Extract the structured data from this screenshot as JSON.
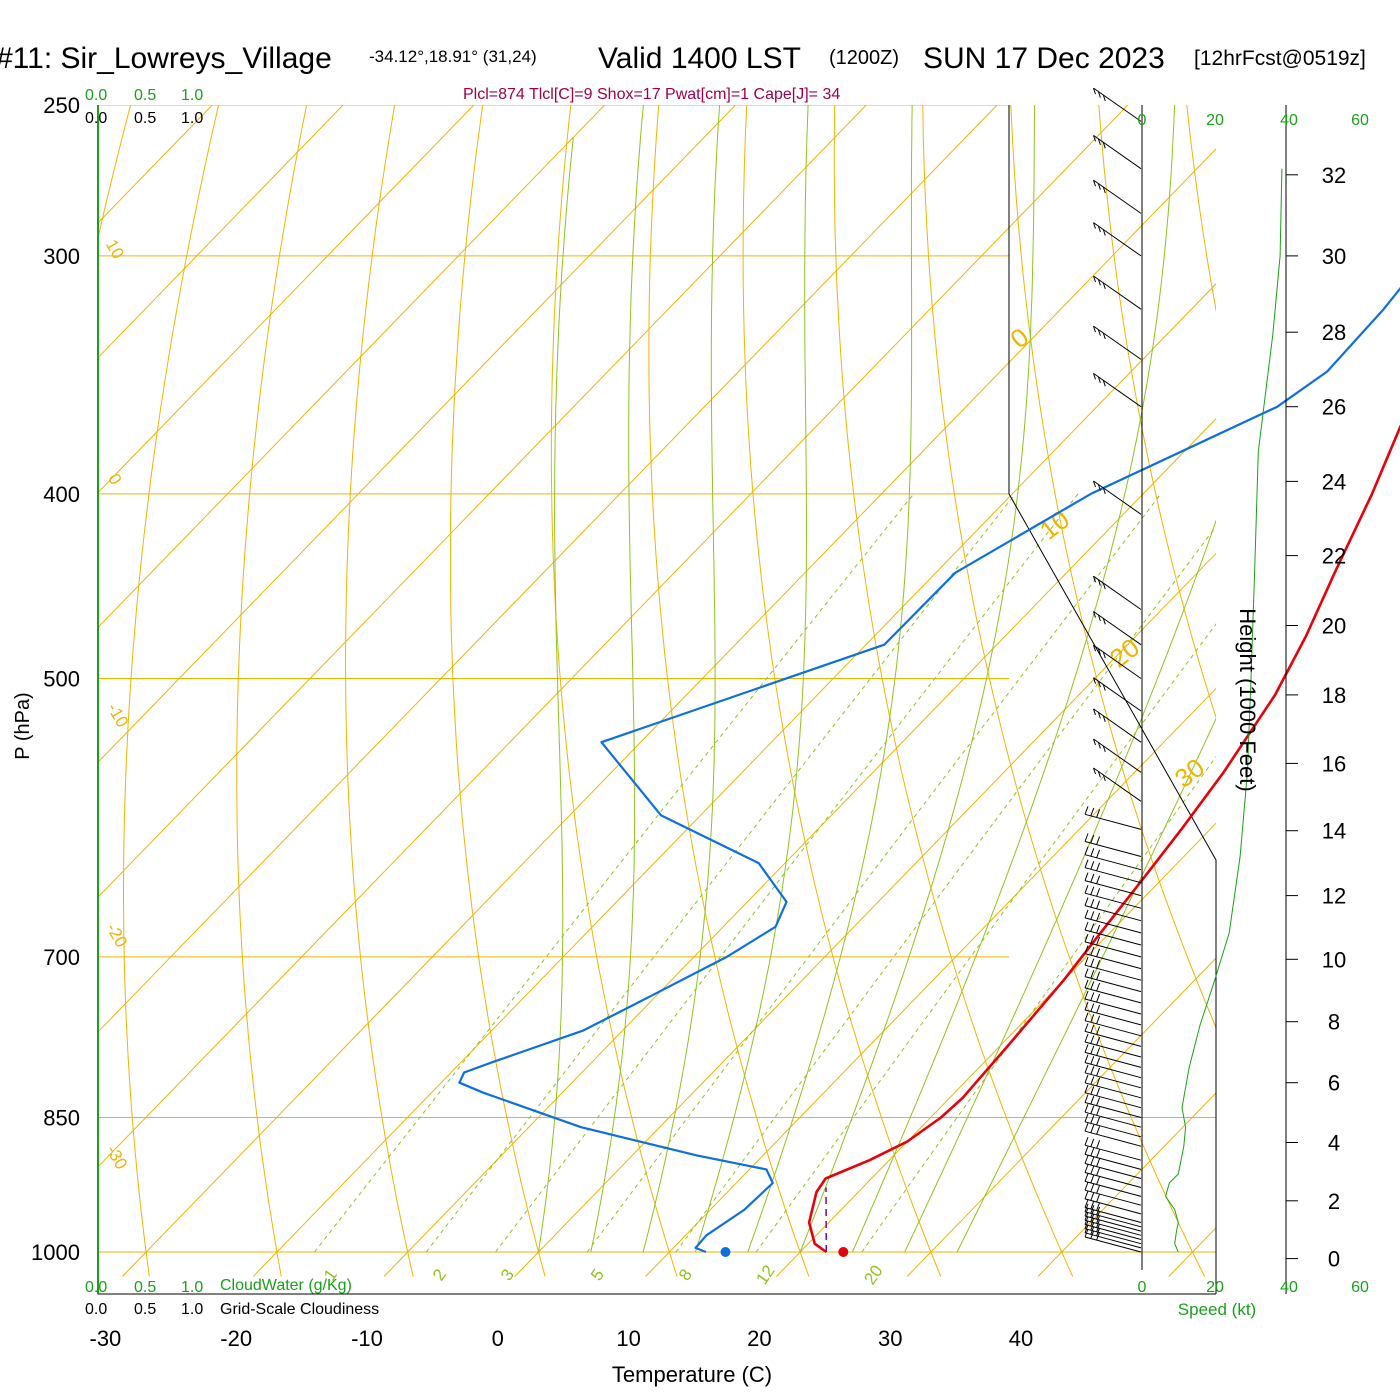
{
  "header": {
    "station": "#11: Sir_Lowreys_Village",
    "coords": "-34.12°,18.91° (31,24)",
    "valid": "Valid 1400 LST",
    "zulu": "(1200Z)",
    "date": "SUN 17 Dec 2023",
    "forecast": "[12hrFcst@0519z]",
    "indices": "Plcl=874 Tlcl[C]=9 Shox=17 Pwat[cm]=1 Cape[J]= 34"
  },
  "colors": {
    "isotherm": "#f0b400",
    "dry_adiabat": "#f0b400",
    "moist_adiabat": "#8fc31f",
    "mixing_ratio": "#8fc31f",
    "temperature": "#e8000b",
    "dewpoint": "#0d6fe0",
    "parcel": "#7a0a8a",
    "green_text": "#1aa01a",
    "index_text": "#a0004a"
  },
  "scales": {
    "cloudwater_ticks_top": [
      "0.0",
      "0.5",
      "1.0"
    ],
    "cloudiness_ticks_top": [
      "0.0",
      "0.5",
      "1.0"
    ],
    "cloudwater_ticks_bottom": [
      "0.0",
      "0.5",
      "1.0"
    ],
    "cloudwater_label": "CloudWater (g/Kg)",
    "cloudiness_ticks_bottom": [
      "0.0",
      "0.5",
      "1.0"
    ],
    "cloudiness_label": "Grid-Scale Cloudiness",
    "speed_ticks": [
      "0",
      "20",
      "40",
      "60"
    ],
    "speed_label": "Speed (kt)"
  },
  "chart_data": {
    "type": "line",
    "title": "",
    "xlabel": "Temperature (C)",
    "ylabel": "P (hPa)",
    "y2label": "Height (1000 Feet)",
    "pressure_log_scale": true,
    "pressure_range": [
      1020,
      250
    ],
    "pressure_ticks": [
      250,
      300,
      400,
      500,
      700,
      850,
      1000
    ],
    "isobars": [
      250,
      300,
      400,
      500,
      700,
      850,
      1000
    ],
    "temperature_ticks": [
      -30,
      -20,
      -10,
      0,
      10,
      20,
      30,
      40
    ],
    "height_ticks_kft": [
      0,
      2,
      4,
      6,
      8,
      10,
      12,
      14,
      16,
      18,
      20,
      22,
      24,
      26,
      28,
      30,
      32
    ],
    "height_pressure": [
      [
        0,
        1008
      ],
      [
        2,
        940
      ],
      [
        4,
        876
      ],
      [
        6,
        815
      ],
      [
        8,
        757
      ],
      [
        10,
        702
      ],
      [
        12,
        650
      ],
      [
        14,
        601
      ],
      [
        16,
        554
      ],
      [
        18,
        510
      ],
      [
        20,
        469
      ],
      [
        22,
        431
      ],
      [
        24,
        394
      ],
      [
        26,
        360
      ],
      [
        28,
        329
      ],
      [
        30,
        300
      ],
      [
        32,
        272
      ]
    ],
    "isotherm_labels": [
      "0",
      "10",
      "20",
      "30"
    ],
    "dry_adiabat_labels": [
      "10",
      "0",
      "-10",
      "-20",
      "-30"
    ],
    "moist_adiabat_labels": [
      "12",
      "20"
    ],
    "mixing_ratio_labels": [
      "1",
      "2",
      "3",
      "5",
      "8",
      "12",
      "20"
    ],
    "mixing_ratio_lines": [
      1,
      2,
      3,
      5,
      8,
      12,
      20
    ],
    "series": [
      {
        "key": "temperature",
        "points": [
          [
            22,
            1000
          ],
          [
            20.5,
            990
          ],
          [
            18.5,
            965
          ],
          [
            16.8,
            930
          ],
          [
            16.5,
            915
          ],
          [
            18.5,
            895
          ],
          [
            20,
            875
          ],
          [
            20.8,
            850
          ],
          [
            21,
            830
          ],
          [
            20.6,
            780
          ],
          [
            20,
            720
          ],
          [
            19.3,
            680
          ],
          [
            18.6,
            640
          ],
          [
            17.8,
            600
          ],
          [
            16.8,
            560
          ],
          [
            15,
            510
          ],
          [
            13,
            475
          ],
          [
            10.5,
            440
          ],
          [
            7.5,
            400
          ],
          [
            4.8,
            370
          ],
          [
            2,
            340
          ],
          [
            -1,
            310
          ],
          [
            -4,
            280
          ],
          [
            -7,
            260
          ]
        ]
      },
      {
        "key": "dewpoint",
        "points": [
          [
            12.8,
            1000
          ],
          [
            11.7,
            995
          ],
          [
            11.6,
            980
          ],
          [
            12.6,
            950
          ],
          [
            12.8,
            920
          ],
          [
            11.3,
            905
          ],
          [
            5,
            890
          ],
          [
            -6,
            860
          ],
          [
            -16,
            825
          ],
          [
            -18.6,
            815
          ],
          [
            -19,
            805
          ],
          [
            -17.6,
            795
          ],
          [
            -13,
            765
          ],
          [
            -10.5,
            735
          ],
          [
            -7.5,
            700
          ],
          [
            -6,
            675
          ],
          [
            -7,
            655
          ],
          [
            -12,
            625
          ],
          [
            -23,
            590
          ],
          [
            -33,
            540
          ],
          [
            -18.6,
            480
          ],
          [
            -18.5,
            440
          ],
          [
            -14,
            400
          ],
          [
            -6.2,
            360
          ],
          [
            -5,
            345
          ],
          [
            -5.3,
            320
          ],
          [
            -6,
            300
          ],
          [
            -6.5,
            285
          ],
          [
            -6.2,
            265
          ]
        ]
      },
      {
        "key": "parcel",
        "points": [
          [
            22,
            1000
          ],
          [
            17.2,
            925
          ]
        ]
      }
    ],
    "surface_temperature": 23.3,
    "surface_dewpoint": 14.3,
    "wind_speed_profile": [
      [
        10,
        1000
      ],
      [
        9,
        990
      ],
      [
        9.5,
        975
      ],
      [
        10,
        965
      ],
      [
        9,
        950
      ],
      [
        6.5,
        935
      ],
      [
        7.5,
        920
      ],
      [
        10,
        910
      ],
      [
        11.5,
        880
      ],
      [
        12,
        860
      ],
      [
        11,
        840
      ],
      [
        13,
        800
      ],
      [
        16,
        760
      ],
      [
        20,
        720
      ],
      [
        24,
        680
      ],
      [
        27,
        620
      ],
      [
        29,
        560
      ],
      [
        30,
        500
      ],
      [
        31,
        440
      ],
      [
        32,
        380
      ],
      [
        36,
        330
      ],
      [
        38,
        300
      ],
      [
        38.5,
        270
      ]
    ],
    "wind_barbs_pressure": [
      1000,
      995,
      990,
      985,
      980,
      975,
      970,
      965,
      955,
      945,
      935,
      925,
      915,
      905,
      895,
      880,
      870,
      860,
      850,
      840,
      830,
      820,
      810,
      800,
      790,
      780,
      770,
      760,
      750,
      740,
      730,
      720,
      710,
      700,
      690,
      680,
      670,
      660,
      650,
      640,
      630,
      620,
      600,
      580,
      560,
      540,
      520,
      500,
      480,
      460,
      410,
      360,
      340,
      320,
      300,
      285,
      270,
      255
    ],
    "wind_barbs_length": [
      [
        1000,
        3
      ],
      [
        985,
        3
      ],
      [
        970,
        3
      ],
      [
        960,
        4
      ],
      [
        940,
        3
      ],
      [
        920,
        4
      ],
      [
        900,
        4
      ],
      [
        890,
        4
      ],
      [
        880,
        4
      ],
      [
        850,
        4
      ],
      [
        840,
        5
      ],
      [
        830,
        5
      ],
      [
        800,
        6
      ],
      [
        700,
        6
      ],
      [
        600,
        6
      ],
      [
        500,
        6
      ],
      [
        460,
        7
      ],
      [
        410,
        7
      ],
      [
        360,
        8
      ],
      [
        250,
        8
      ]
    ]
  }
}
